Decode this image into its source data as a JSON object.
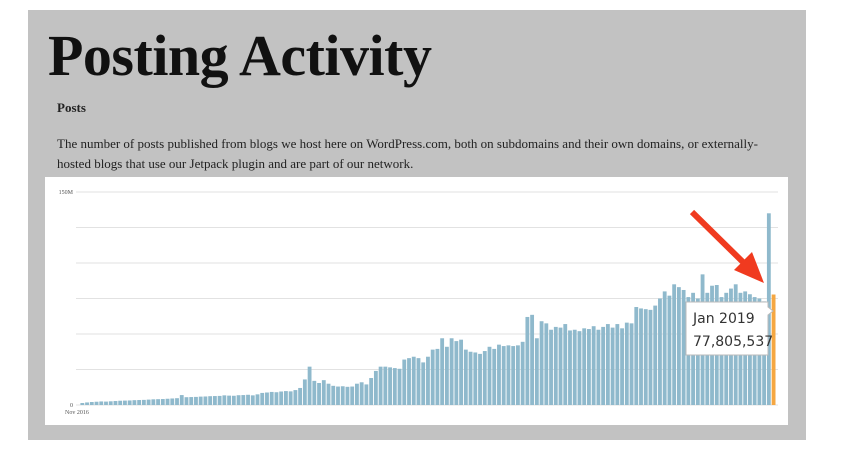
{
  "header": {
    "title": "Posting Activity",
    "subtitle": "Posts",
    "description": "The number of posts published from blogs we host here on WordPress.com, both on subdomains and their own domains, or externally-hosted blogs that use our Jetpack plugin and are part of our network."
  },
  "chart_data": {
    "type": "bar",
    "categories": [
      "Nov 2016",
      null,
      null,
      null,
      null,
      null,
      null,
      null,
      null,
      null,
      null,
      null,
      null,
      null,
      null,
      null,
      null,
      null,
      null,
      null,
      null,
      null,
      null,
      null,
      null,
      null,
      null,
      null,
      null,
      null,
      null,
      null,
      null,
      null,
      null,
      null,
      null,
      null,
      null,
      null,
      null,
      null,
      null,
      null,
      null,
      null,
      null,
      null,
      null,
      null,
      null,
      null,
      null,
      null,
      null,
      null,
      null,
      null,
      null,
      null,
      null,
      null,
      null,
      null,
      null,
      null,
      null,
      null,
      null,
      null,
      null,
      null,
      null,
      null,
      null,
      null,
      null,
      null,
      null,
      null,
      null,
      null,
      null,
      null,
      null,
      null,
      null,
      null,
      null,
      null,
      null,
      null,
      null,
      null,
      null,
      null,
      null,
      null,
      null,
      null,
      null,
      null,
      null,
      null,
      null,
      null,
      null,
      null,
      null,
      null,
      null,
      null,
      null,
      null,
      null,
      null,
      null,
      null,
      null,
      null,
      null,
      null,
      null,
      null,
      null,
      null,
      null,
      null,
      null,
      null,
      null,
      null,
      null,
      null,
      null,
      null,
      null,
      null,
      null,
      null,
      null,
      null,
      null,
      null,
      null,
      null,
      "Jan 2019"
    ],
    "values": [
      1400000,
      1800000,
      2100000,
      2300000,
      2500000,
      2400000,
      2600000,
      2800000,
      3000000,
      3100000,
      3200000,
      3400000,
      3500000,
      3600000,
      3800000,
      4000000,
      4100000,
      4200000,
      4400000,
      4600000,
      4800000,
      7000000,
      5500000,
      5600000,
      5700000,
      5900000,
      6000000,
      6200000,
      6300000,
      6400000,
      6800000,
      6600000,
      6500000,
      6900000,
      7000000,
      7200000,
      6800000,
      7500000,
      8500000,
      8800000,
      9200000,
      9000000,
      9500000,
      9800000,
      9600000,
      10500000,
      12000000,
      18000000,
      27000000,
      17000000,
      15500000,
      17500000,
      15000000,
      13500000,
      13000000,
      13200000,
      12800000,
      13000000,
      15000000,
      16000000,
      14500000,
      19000000,
      24000000,
      27000000,
      27000000,
      26500000,
      26000000,
      25500000,
      32000000,
      33000000,
      34000000,
      33000000,
      30000000,
      34000000,
      39000000,
      39500000,
      47000000,
      41000000,
      47000000,
      45000000,
      46000000,
      39000000,
      37500000,
      37000000,
      36000000,
      38000000,
      41000000,
      39500000,
      42500000,
      41500000,
      42000000,
      41500000,
      42000000,
      44500000,
      62000000,
      63500000,
      47000000,
      59000000,
      57500000,
      53000000,
      55000000,
      54500000,
      57000000,
      52500000,
      53000000,
      52000000,
      54000000,
      53500000,
      55500000,
      53000000,
      55000000,
      57000000,
      54500000,
      57000000,
      54000000,
      58000000,
      57500000,
      69000000,
      68000000,
      67500000,
      67000000,
      70000000,
      75000000,
      80000000,
      77000000,
      85000000,
      83000000,
      81000000,
      76000000,
      79000000,
      75000000,
      92000000,
      79000000,
      84000000,
      84500000,
      76000000,
      79000000,
      82000000,
      85000000,
      79000000,
      80000000,
      78000000,
      76000000,
      75000000,
      73000000,
      135000000,
      77805537
    ],
    "value_labels": [
      null,
      null,
      null,
      null,
      null,
      null,
      null,
      null,
      null,
      null,
      null,
      null,
      null,
      null,
      null,
      null,
      null,
      null,
      null,
      null,
      null,
      null,
      null,
      null,
      null,
      null,
      null,
      null,
      null,
      null,
      null,
      null,
      null,
      null,
      null,
      null,
      null,
      null,
      null,
      null,
      null,
      null,
      null,
      null,
      null,
      null,
      null,
      null,
      null,
      null,
      null,
      null,
      null,
      null,
      null,
      null,
      null,
      null,
      null,
      null,
      null,
      null,
      null,
      null,
      null,
      null,
      null,
      null,
      null,
      null,
      null,
      null,
      null,
      null,
      null,
      null,
      null,
      null,
      null,
      null,
      null,
      null,
      null,
      null,
      null,
      null,
      null,
      null,
      null,
      null,
      null,
      null,
      null,
      null,
      null,
      null,
      null,
      null,
      null,
      null,
      null,
      null,
      null,
      null,
      null,
      null,
      null,
      null,
      null,
      null,
      null,
      null,
      null,
      null,
      null,
      null,
      null,
      null,
      null,
      null,
      null,
      null,
      null,
      null,
      null,
      null,
      null,
      null,
      null,
      null,
      null,
      null,
      null,
      null,
      null,
      null,
      null,
      null,
      null,
      null,
      null,
      null,
      null,
      null,
      null,
      null,
      "77,805,537"
    ],
    "color": "#8fb9cc",
    "active_color": "#f5a742",
    "ylim": [
      0,
      150000000
    ],
    "yticks": [
      0,
      {
        "value": 150000000,
        "label": "150M"
      }
    ],
    "ygrid": [
      0,
      25000000,
      50000000,
      75000000,
      100000000,
      125000000,
      150000000
    ],
    "grid": true
  }
}
